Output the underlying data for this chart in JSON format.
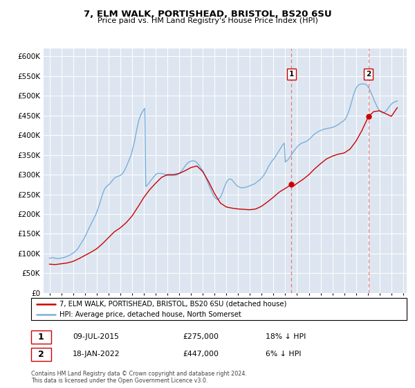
{
  "title": "7, ELM WALK, PORTISHEAD, BRISTOL, BS20 6SU",
  "subtitle": "Price paid vs. HM Land Registry's House Price Index (HPI)",
  "ylim": [
    0,
    620000
  ],
  "yticks": [
    0,
    50000,
    100000,
    150000,
    200000,
    250000,
    300000,
    350000,
    400000,
    450000,
    500000,
    550000,
    600000
  ],
  "xlim_start": 1994.5,
  "xlim_end": 2025.3,
  "sale1_date": 2015.52,
  "sale1_price": 275000,
  "sale1_label": "1",
  "sale2_date": 2022.05,
  "sale2_price": 447000,
  "sale2_label": "2",
  "red_color": "#cc0000",
  "blue_color": "#7aaedc",
  "dashed_color": "#e87777",
  "background_color": "#dde6f0",
  "legend_line1": "7, ELM WALK, PORTISHEAD, BRISTOL, BS20 6SU (detached house)",
  "legend_line2": "HPI: Average price, detached house, North Somerset",
  "info1_label": "1",
  "info1_date": "09-JUL-2015",
  "info1_price": "£275,000",
  "info1_hpi": "18% ↓ HPI",
  "info2_label": "2",
  "info2_date": "18-JAN-2022",
  "info2_price": "£447,000",
  "info2_hpi": "6% ↓ HPI",
  "footer": "Contains HM Land Registry data © Crown copyright and database right 2024.\nThis data is licensed under the Open Government Licence v3.0.",
  "hpi_years": [
    1995.0,
    1995.08,
    1995.17,
    1995.25,
    1995.33,
    1995.42,
    1995.5,
    1995.58,
    1995.67,
    1995.75,
    1995.83,
    1995.92,
    1996.0,
    1996.08,
    1996.17,
    1996.25,
    1996.33,
    1996.42,
    1996.5,
    1996.58,
    1996.67,
    1996.75,
    1996.83,
    1996.92,
    1997.0,
    1997.08,
    1997.17,
    1997.25,
    1997.33,
    1997.42,
    1997.5,
    1997.58,
    1997.67,
    1997.75,
    1997.83,
    1997.92,
    1998.0,
    1998.08,
    1998.17,
    1998.25,
    1998.33,
    1998.42,
    1998.5,
    1998.58,
    1998.67,
    1998.75,
    1998.83,
    1998.92,
    1999.0,
    1999.08,
    1999.17,
    1999.25,
    1999.33,
    1999.42,
    1999.5,
    1999.58,
    1999.67,
    1999.75,
    1999.83,
    1999.92,
    2000.0,
    2000.08,
    2000.17,
    2000.25,
    2000.33,
    2000.42,
    2000.5,
    2000.58,
    2000.67,
    2000.75,
    2000.83,
    2000.92,
    2001.0,
    2001.08,
    2001.17,
    2001.25,
    2001.33,
    2001.42,
    2001.5,
    2001.58,
    2001.67,
    2001.75,
    2001.83,
    2001.92,
    2002.0,
    2002.08,
    2002.17,
    2002.25,
    2002.33,
    2002.42,
    2002.5,
    2002.58,
    2002.67,
    2002.75,
    2002.83,
    2002.92,
    2003.0,
    2003.08,
    2003.17,
    2003.25,
    2003.33,
    2003.42,
    2003.5,
    2003.58,
    2003.67,
    2003.75,
    2003.83,
    2003.92,
    2004.0,
    2004.08,
    2004.17,
    2004.25,
    2004.33,
    2004.42,
    2004.5,
    2004.58,
    2004.67,
    2004.75,
    2004.83,
    2004.92,
    2005.0,
    2005.08,
    2005.17,
    2005.25,
    2005.33,
    2005.42,
    2005.5,
    2005.58,
    2005.67,
    2005.75,
    2005.83,
    2005.92,
    2006.0,
    2006.08,
    2006.17,
    2006.25,
    2006.33,
    2006.42,
    2006.5,
    2006.58,
    2006.67,
    2006.75,
    2006.83,
    2006.92,
    2007.0,
    2007.08,
    2007.17,
    2007.25,
    2007.33,
    2007.42,
    2007.5,
    2007.58,
    2007.67,
    2007.75,
    2007.83,
    2007.92,
    2008.0,
    2008.08,
    2008.17,
    2008.25,
    2008.33,
    2008.42,
    2008.5,
    2008.58,
    2008.67,
    2008.75,
    2008.83,
    2008.92,
    2009.0,
    2009.08,
    2009.17,
    2009.25,
    2009.33,
    2009.42,
    2009.5,
    2009.58,
    2009.67,
    2009.75,
    2009.83,
    2009.92,
    2010.0,
    2010.08,
    2010.17,
    2010.25,
    2010.33,
    2010.42,
    2010.5,
    2010.58,
    2010.67,
    2010.75,
    2010.83,
    2010.92,
    2011.0,
    2011.08,
    2011.17,
    2011.25,
    2011.33,
    2011.42,
    2011.5,
    2011.58,
    2011.67,
    2011.75,
    2011.83,
    2011.92,
    2012.0,
    2012.08,
    2012.17,
    2012.25,
    2012.33,
    2012.42,
    2012.5,
    2012.58,
    2012.67,
    2012.75,
    2012.83,
    2012.92,
    2013.0,
    2013.08,
    2013.17,
    2013.25,
    2013.33,
    2013.42,
    2013.5,
    2013.58,
    2013.67,
    2013.75,
    2013.83,
    2013.92,
    2014.0,
    2014.08,
    2014.17,
    2014.25,
    2014.33,
    2014.42,
    2014.5,
    2014.58,
    2014.67,
    2014.75,
    2014.83,
    2014.92,
    2015.0,
    2015.08,
    2015.17,
    2015.25,
    2015.33,
    2015.42,
    2015.5,
    2015.58,
    2015.67,
    2015.75,
    2015.83,
    2015.92,
    2016.0,
    2016.08,
    2016.17,
    2016.25,
    2016.33,
    2016.42,
    2016.5,
    2016.58,
    2016.67,
    2016.75,
    2016.83,
    2016.92,
    2017.0,
    2017.08,
    2017.17,
    2017.25,
    2017.33,
    2017.42,
    2017.5,
    2017.58,
    2017.67,
    2017.75,
    2017.83,
    2017.92,
    2018.0,
    2018.08,
    2018.17,
    2018.25,
    2018.33,
    2018.42,
    2018.5,
    2018.58,
    2018.67,
    2018.75,
    2018.83,
    2018.92,
    2019.0,
    2019.08,
    2019.17,
    2019.25,
    2019.33,
    2019.42,
    2019.5,
    2019.58,
    2019.67,
    2019.75,
    2019.83,
    2019.92,
    2020.0,
    2020.08,
    2020.17,
    2020.25,
    2020.33,
    2020.42,
    2020.5,
    2020.58,
    2020.67,
    2020.75,
    2020.83,
    2020.92,
    2021.0,
    2021.08,
    2021.17,
    2021.25,
    2021.33,
    2021.42,
    2021.5,
    2021.58,
    2021.67,
    2021.75,
    2021.83,
    2021.92,
    2022.0,
    2022.08,
    2022.17,
    2022.25,
    2022.33,
    2022.42,
    2022.5,
    2022.58,
    2022.67,
    2022.75,
    2022.83,
    2022.92,
    2023.0,
    2023.08,
    2023.17,
    2023.25,
    2023.33,
    2023.42,
    2023.5,
    2023.58,
    2023.67,
    2023.75,
    2023.83,
    2023.92,
    2024.0,
    2024.08,
    2024.17,
    2024.25,
    2024.33,
    2024.42,
    2024.5
  ],
  "hpi_values": [
    88000,
    88500,
    89000,
    89500,
    89000,
    88500,
    88000,
    87500,
    87000,
    87000,
    87500,
    88000,
    88500,
    89000,
    89500,
    90000,
    91000,
    92000,
    93000,
    94000,
    95000,
    96500,
    98000,
    99500,
    101000,
    103000,
    105000,
    107000,
    110000,
    113000,
    117000,
    121000,
    125000,
    129000,
    133000,
    137000,
    142000,
    147000,
    152000,
    158000,
    163000,
    168000,
    173000,
    178000,
    183000,
    188000,
    193000,
    198000,
    204000,
    211000,
    218000,
    226000,
    234000,
    242000,
    250000,
    257000,
    263000,
    267000,
    270000,
    272000,
    274000,
    276000,
    279000,
    282000,
    285000,
    288000,
    291000,
    293000,
    294000,
    295000,
    296000,
    297000,
    298000,
    300000,
    302000,
    305000,
    309000,
    314000,
    319000,
    325000,
    331000,
    337000,
    343000,
    350000,
    358000,
    368000,
    378000,
    390000,
    403000,
    416000,
    428000,
    438000,
    446000,
    452000,
    457000,
    461000,
    465000,
    468000,
    270000,
    272000,
    275000,
    278000,
    281000,
    285000,
    288000,
    291000,
    294000,
    297000,
    300000,
    302000,
    303000,
    303000,
    303000,
    303000,
    303000,
    302000,
    302000,
    301000,
    300000,
    299000,
    298000,
    298000,
    298000,
    298000,
    298000,
    298000,
    298000,
    298000,
    298000,
    299000,
    300000,
    301000,
    303000,
    305000,
    308000,
    311000,
    315000,
    318000,
    322000,
    325000,
    328000,
    330000,
    332000,
    333000,
    334000,
    335000,
    335000,
    335000,
    334000,
    333000,
    331000,
    328000,
    325000,
    321000,
    317000,
    313000,
    309000,
    304000,
    299000,
    293000,
    287000,
    281000,
    275000,
    269000,
    263000,
    257000,
    252000,
    247000,
    243000,
    240000,
    238000,
    237000,
    238000,
    240000,
    243000,
    248000,
    254000,
    261000,
    268000,
    274000,
    280000,
    284000,
    287000,
    289000,
    289000,
    288000,
    286000,
    283000,
    280000,
    277000,
    274000,
    272000,
    270000,
    269000,
    268000,
    267000,
    267000,
    267000,
    267000,
    268000,
    268000,
    269000,
    270000,
    271000,
    272000,
    273000,
    274000,
    275000,
    276000,
    277000,
    279000,
    281000,
    283000,
    285000,
    287000,
    289000,
    292000,
    295000,
    298000,
    302000,
    306000,
    311000,
    316000,
    321000,
    325000,
    329000,
    333000,
    336000,
    339000,
    342000,
    346000,
    350000,
    354000,
    358000,
    362000,
    366000,
    370000,
    374000,
    377000,
    380000,
    332000,
    334000,
    336000,
    339000,
    342000,
    346000,
    349000,
    353000,
    357000,
    361000,
    364000,
    367000,
    370000,
    373000,
    375000,
    377000,
    379000,
    380000,
    381000,
    382000,
    383000,
    384000,
    385000,
    387000,
    389000,
    391000,
    394000,
    396000,
    399000,
    401000,
    403000,
    405000,
    407000,
    408000,
    410000,
    411000,
    412000,
    413000,
    414000,
    415000,
    416000,
    416000,
    417000,
    417000,
    418000,
    418000,
    419000,
    419000,
    420000,
    421000,
    422000,
    423000,
    424000,
    426000,
    427000,
    429000,
    431000,
    433000,
    434000,
    436000,
    438000,
    441000,
    445000,
    450000,
    456000,
    463000,
    471000,
    480000,
    489000,
    498000,
    506000,
    513000,
    519000,
    523000,
    526000,
    528000,
    529000,
    530000,
    530000,
    530000,
    530000,
    530000,
    529000,
    527000,
    524000,
    520000,
    515000,
    510000,
    504000,
    498000,
    492000,
    486000,
    480000,
    475000,
    470000,
    466000,
    462000,
    460000,
    458000,
    457000,
    457000,
    458000,
    460000,
    463000,
    466000,
    470000,
    473000,
    476000,
    479000,
    481000,
    483000,
    484000,
    485000,
    486000,
    487000
  ],
  "price_years": [
    1995.0,
    1995.5,
    1996.0,
    1996.5,
    1997.0,
    1997.5,
    1998.0,
    1998.5,
    1999.0,
    1999.5,
    2000.0,
    2000.5,
    2001.0,
    2001.5,
    2002.0,
    2002.5,
    2003.0,
    2003.5,
    2004.0,
    2004.5,
    2005.0,
    2005.5,
    2006.0,
    2006.5,
    2007.0,
    2007.5,
    2008.0,
    2008.5,
    2009.0,
    2009.5,
    2010.0,
    2010.5,
    2011.0,
    2011.5,
    2012.0,
    2012.5,
    2013.0,
    2013.5,
    2014.0,
    2014.5,
    2015.0,
    2015.52,
    2015.75,
    2016.0,
    2016.5,
    2017.0,
    2017.5,
    2018.0,
    2018.5,
    2019.0,
    2019.5,
    2020.0,
    2020.5,
    2021.0,
    2021.5,
    2022.05,
    2022.5,
    2023.0,
    2023.5,
    2024.0,
    2024.5
  ],
  "price_values": [
    73000,
    72000,
    74000,
    76000,
    80000,
    87000,
    95000,
    103000,
    112000,
    125000,
    140000,
    155000,
    165000,
    178000,
    195000,
    218000,
    242000,
    262000,
    278000,
    293000,
    300000,
    300000,
    303000,
    310000,
    318000,
    322000,
    308000,
    282000,
    252000,
    228000,
    218000,
    215000,
    213000,
    212000,
    211000,
    213000,
    220000,
    231000,
    243000,
    256000,
    265000,
    275000,
    272000,
    278000,
    288000,
    300000,
    315000,
    328000,
    340000,
    347000,
    352000,
    355000,
    365000,
    385000,
    412000,
    447000,
    460000,
    462000,
    455000,
    448000,
    470000
  ]
}
